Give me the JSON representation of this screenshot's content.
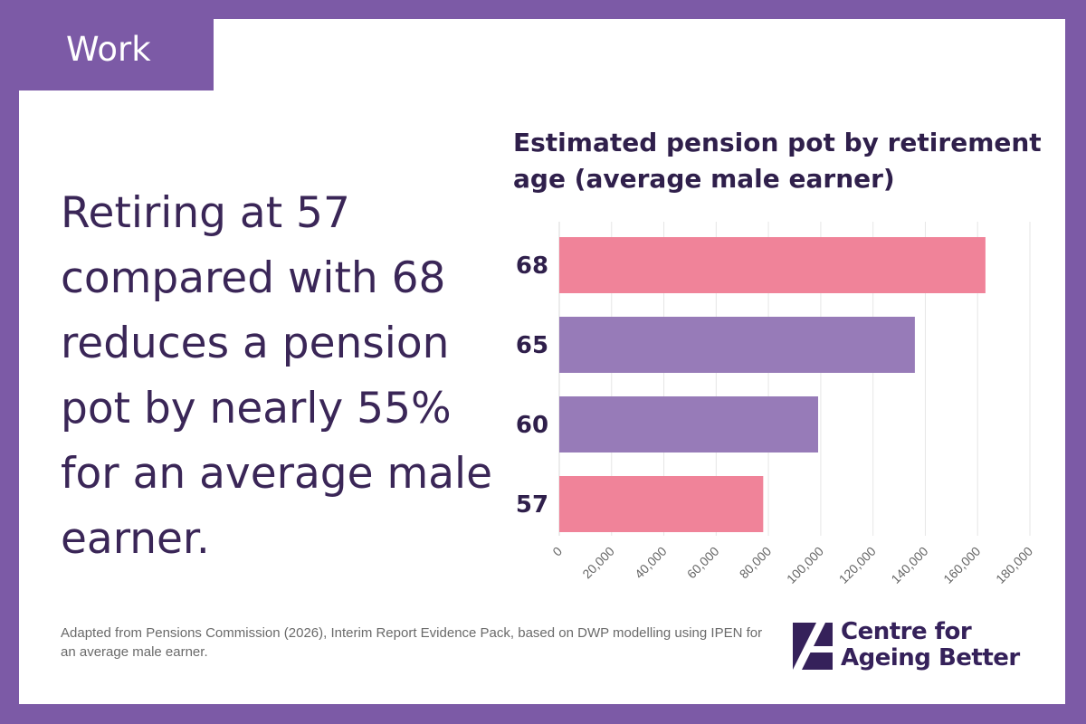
{
  "tag": {
    "label": "Work"
  },
  "headline": "Retiring at 57 compared with 68 reduces a pension pot by nearly 55% for an average male earner.",
  "source": "Adapted from Pensions Commission (2026), Interim Report Evidence Pack, based on DWP modelling using IPEN for an average male earner.",
  "logo": {
    "line1": "Centre for",
    "line2": "Ageing Better"
  },
  "colors": {
    "frame": "#7c5aa6",
    "headline": "#3a2657",
    "pink_bar": "#f08399",
    "purple_bar": "#977bb8"
  },
  "chart_data": {
    "type": "bar",
    "orientation": "horizontal",
    "title": "Estimated pension pot by retirement age (average male earner)",
    "categories": [
      "68",
      "65",
      "60",
      "57"
    ],
    "values": [
      163000,
      136000,
      99000,
      78000
    ],
    "bar_colors": [
      "#f08399",
      "#977bb8",
      "#977bb8",
      "#f08399"
    ],
    "xlim": [
      0,
      180000
    ],
    "x_ticks": [
      0,
      20000,
      40000,
      60000,
      80000,
      100000,
      120000,
      140000,
      160000,
      180000
    ],
    "x_tick_labels": [
      "0",
      "20,000",
      "40,000",
      "60,000",
      "80,000",
      "100,000",
      "120,000",
      "140,000",
      "160,000",
      "180,000"
    ],
    "xlabel": "",
    "ylabel": "",
    "grid": true
  }
}
